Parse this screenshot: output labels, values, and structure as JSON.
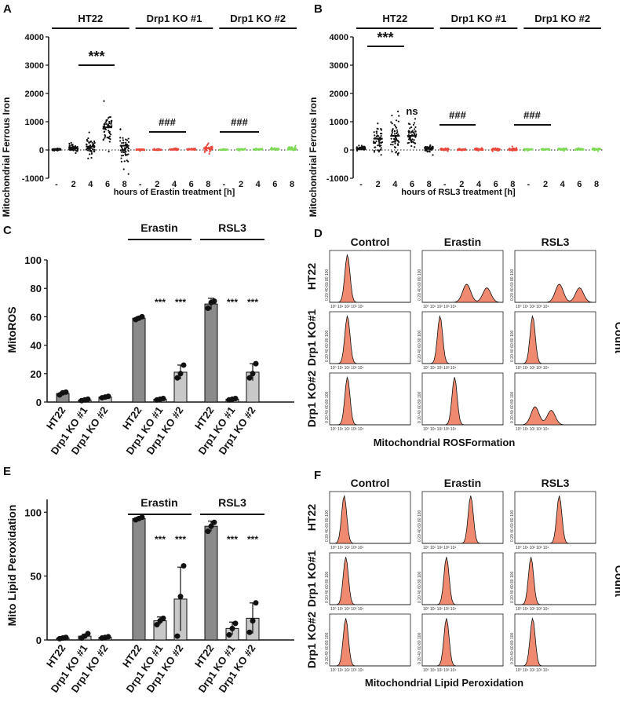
{
  "chart_data": [
    {
      "id": "A",
      "type": "scatter",
      "panel_label": "A",
      "ylabel": "Mitochondrial Ferrous Iron",
      "xlabel": "hours of Erastin treatment [h]",
      "ylim": [
        -1000,
        4000
      ],
      "yticks": [
        "4000",
        "3000",
        "2000",
        "1000",
        "0",
        "-1000"
      ],
      "groups": [
        "HT22",
        "Drp1 KO #1",
        "Drp1 KO #2"
      ],
      "categories": [
        "-",
        "2",
        "4",
        "6",
        "8"
      ],
      "colors": [
        "#111111",
        "#e8473c",
        "#7ed957"
      ],
      "series": [
        {
          "name": "HT22",
          "centers": [
            20,
            80,
            120,
            800,
            150
          ],
          "spread": [
            60,
            200,
            600,
            900,
            1100
          ]
        },
        {
          "name": "Drp1 KO #1",
          "centers": [
            10,
            10,
            20,
            20,
            60
          ],
          "spread": [
            40,
            40,
            50,
            60,
            200
          ]
        },
        {
          "name": "Drp1 KO #2",
          "centers": [
            10,
            20,
            20,
            30,
            40
          ],
          "spread": [
            30,
            40,
            50,
            60,
            120
          ]
        }
      ],
      "annotations": [
        "***",
        "###",
        "###"
      ]
    },
    {
      "id": "B",
      "type": "scatter",
      "panel_label": "B",
      "ylabel": "Mitochondrial Ferrous Iron",
      "xlabel": "hours of RSL3 treatment [h]",
      "ylim": [
        -1000,
        4000
      ],
      "yticks": [
        "4000",
        "3000",
        "2000",
        "1000",
        "0",
        "-1000"
      ],
      "groups": [
        "HT22",
        "Drp1 KO #1",
        "Drp1 KO #2"
      ],
      "categories": [
        "-",
        "2",
        "4",
        "6",
        "8"
      ],
      "colors": [
        "#111111",
        "#e8473c",
        "#7ed957"
      ],
      "series": [
        {
          "name": "HT22",
          "centers": [
            60,
            400,
            500,
            500,
            50
          ],
          "spread": [
            120,
            900,
            1400,
            800,
            200
          ]
        },
        {
          "name": "Drp1 KO #1",
          "centers": [
            20,
            20,
            20,
            20,
            20
          ],
          "spread": [
            50,
            60,
            60,
            70,
            80
          ]
        },
        {
          "name": "Drp1 KO #2",
          "centers": [
            20,
            20,
            30,
            20,
            30
          ],
          "spread": [
            40,
            50,
            60,
            60,
            60
          ]
        }
      ],
      "annotations": [
        "***",
        "ns",
        "###",
        "###"
      ]
    },
    {
      "id": "C",
      "type": "bar",
      "panel_label": "C",
      "ylabel": "MitoROS",
      "ylim": [
        0,
        100
      ],
      "yticks": [
        "0",
        "20",
        "40",
        "60",
        "80",
        "100"
      ],
      "categories": [
        "HT22",
        "Drp1 KO #1",
        "Drp1 KO #2",
        "HT22",
        "Drp1 KO #1",
        "Drp1 KO #2",
        "HT22",
        "Drp1 KO #1",
        "Drp1 KO #2"
      ],
      "values": [
        6,
        1.5,
        3.5,
        59,
        2,
        21,
        69,
        2,
        21
      ],
      "errors": [
        1,
        0.5,
        0.5,
        1,
        0.5,
        5,
        4,
        0.5,
        6
      ],
      "points": [
        [
          5,
          6.5,
          7
        ],
        [
          1,
          1.5,
          2
        ],
        [
          3,
          3.5,
          4
        ],
        [
          58,
          59,
          60
        ],
        [
          1.5,
          2,
          2.5
        ],
        [
          17,
          20,
          26
        ],
        [
          66,
          70,
          71
        ],
        [
          1.5,
          2,
          2.5
        ],
        [
          17,
          20,
          27
        ]
      ],
      "treatments": [
        "Erastin",
        "RSL3"
      ],
      "significance": [
        "***",
        "***",
        "***",
        "***"
      ]
    },
    {
      "id": "E",
      "type": "bar",
      "panel_label": "E",
      "ylabel": "Mito Lipid Peroxidation",
      "ylim": [
        0,
        110
      ],
      "yticks": [
        "0",
        "50",
        "100"
      ],
      "categories": [
        "HT22",
        "Drp1 KO #1",
        "Drp1 KO #2",
        "HT22",
        "Drp1 KO #1",
        "Drp1 KO #2",
        "HT22",
        "Drp1 KO #1",
        "Drp1 KO #2"
      ],
      "values": [
        1.5,
        3,
        2,
        95,
        15,
        32,
        89,
        9,
        17
      ],
      "errors": [
        0.5,
        1.5,
        0.5,
        1,
        3,
        25,
        4,
        5,
        12
      ],
      "points": [
        [
          1,
          1.5,
          2
        ],
        [
          1.5,
          3,
          5
        ],
        [
          1.5,
          2,
          2.5
        ],
        [
          94,
          95,
          96
        ],
        [
          12,
          15,
          17
        ],
        [
          3,
          34,
          58
        ],
        [
          85,
          89,
          92
        ],
        [
          4,
          9,
          13
        ],
        [
          6,
          15,
          29
        ]
      ],
      "treatments": [
        "Erastin",
        "RSL3"
      ],
      "significance": [
        "***",
        "***",
        "***",
        "***"
      ]
    }
  ],
  "flow_D": {
    "panel_label": "D",
    "columns": [
      "Control",
      "Erastin",
      "RSL3"
    ],
    "rows": [
      "HT22",
      "Drp1 KO#1",
      "Drp1 KO#2"
    ],
    "xlabel": "Mitochondrial  ROSFormation",
    "right_label": "Count",
    "ytick_text": "0  20  40  60  80  100",
    "xtick_text": "10⁰   10¹   10²   10³   10⁴",
    "peaks": [
      [
        [
          0.22
        ],
        [
          0.55,
          0.8
        ],
        [
          0.55,
          0.8
        ]
      ],
      [
        [
          0.22
        ],
        [
          0.22
        ],
        [
          0.22
        ]
      ],
      [
        [
          0.22
        ],
        [
          0.4
        ],
        [
          0.25,
          0.45
        ]
      ]
    ]
  },
  "flow_F": {
    "panel_label": "F",
    "columns": [
      "Control",
      "Erastin",
      "RSL3"
    ],
    "rows": [
      "HT22",
      "Drp1 KO#1",
      "Drp1 KO#2"
    ],
    "xlabel": "Mitochondrial  Lipid Peroxidation",
    "right_label": "Count",
    "ytick_text": "0  20  40  60  80  100",
    "xtick_text": "10⁰   10¹   10²   10³   10⁴",
    "peaks": [
      [
        [
          0.18
        ],
        [
          0.6
        ],
        [
          0.55
        ]
      ],
      [
        [
          0.2
        ],
        [
          0.3
        ],
        [
          0.2
        ]
      ],
      [
        [
          0.2
        ],
        [
          0.3
        ],
        [
          0.22
        ]
      ]
    ]
  }
}
